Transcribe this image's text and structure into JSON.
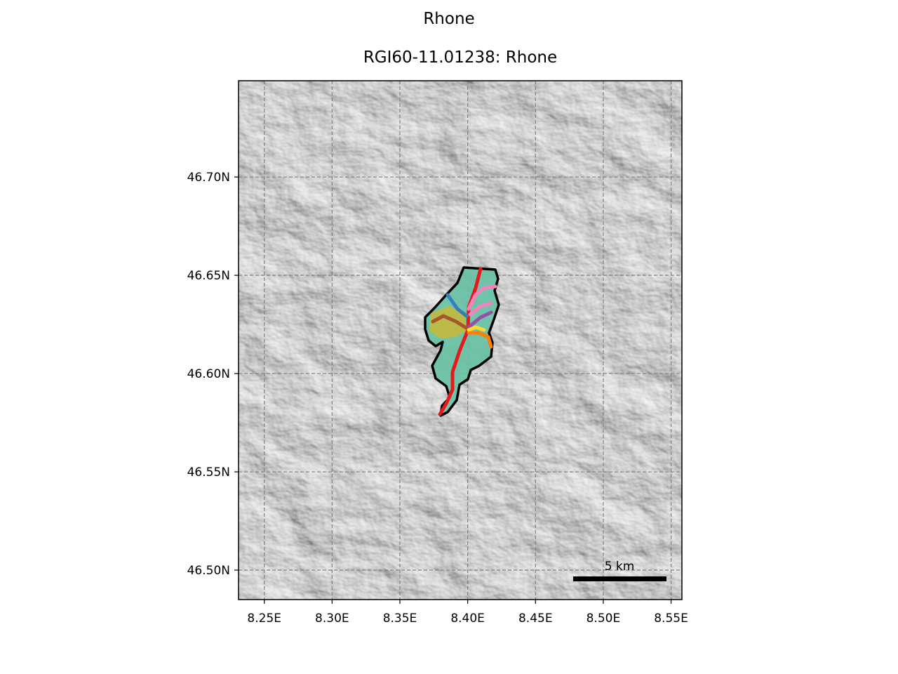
{
  "figure": {
    "suptitle": "Rhone",
    "title": "RGI60-11.01238: Rhone"
  },
  "map": {
    "xticks": [
      {
        "value": 8.25,
        "label": "8.25E"
      },
      {
        "value": 8.3,
        "label": "8.30E"
      },
      {
        "value": 8.35,
        "label": "8.35E"
      },
      {
        "value": 8.4,
        "label": "8.40E"
      },
      {
        "value": 8.45,
        "label": "8.45E"
      },
      {
        "value": 8.5,
        "label": "8.50E"
      },
      {
        "value": 8.55,
        "label": "8.55E"
      }
    ],
    "yticks": [
      {
        "value": 46.5,
        "label": "46.50N"
      },
      {
        "value": 46.55,
        "label": "46.55N"
      },
      {
        "value": 46.6,
        "label": "46.60N"
      },
      {
        "value": 46.65,
        "label": "46.65N"
      },
      {
        "value": 46.7,
        "label": "46.70N"
      }
    ],
    "lon_range": [
      8.231,
      8.558
    ],
    "lat_range": [
      46.485,
      46.749
    ],
    "grid": true,
    "background": "hillshade",
    "scalebar": {
      "label": "5 km"
    },
    "outline_color": "#000000",
    "glacier_fill_color": "#66c2a5",
    "flowline_colors": [
      "#e41a1c",
      "#f781bf",
      "#377eb8",
      "#984ea3",
      "#a65628",
      "#ff7f00",
      "#ffd92f",
      "#4daf4a"
    ]
  }
}
